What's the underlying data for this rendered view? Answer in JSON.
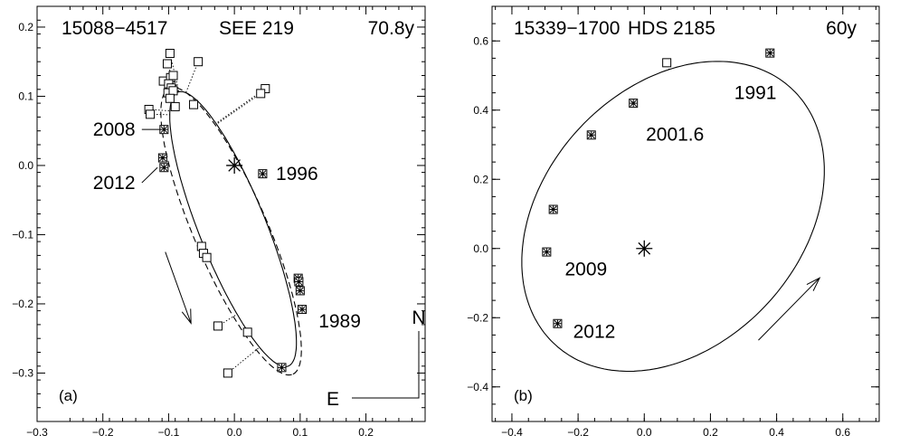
{
  "chart_data": [
    {
      "type": "scatter",
      "panel_label": "(a)",
      "header": [
        "15088−4517",
        "SEE 219",
        "70.8y"
      ],
      "xlim": [
        -0.3,
        0.29
      ],
      "ylim": [
        -0.37,
        0.23
      ],
      "xticks": [
        -0.3,
        -0.2,
        -0.1,
        0.0,
        0.1,
        0.2
      ],
      "yticks": [
        -0.3,
        -0.2,
        -0.1,
        0.0,
        0.1,
        0.2
      ],
      "xtick_labels": [
        "−0.3",
        "−0.2",
        "−0.1",
        "0.0",
        "0.1",
        "0.2"
      ],
      "ytick_labels": [
        "−0.3",
        "−0.2",
        "−0.1",
        "0.0",
        "0.1",
        "0.2"
      ],
      "primary": [
        0.0,
        0.0
      ],
      "orbit_solid": {
        "cx": -0.002,
        "cy": -0.092,
        "a": 0.215,
        "b": 0.0505,
        "angle_deg": -66.9
      },
      "orbit_dashed": {
        "cx": -0.005,
        "cy": -0.095,
        "a": 0.227,
        "b": 0.0555,
        "angle_deg": -65.5
      },
      "observations_speckle": [
        {
          "x": -0.107,
          "y": 0.052
        },
        {
          "x": -0.109,
          "y": 0.011
        },
        {
          "x": -0.107,
          "y": -0.003
        },
        {
          "x": 0.043,
          "y": -0.012
        },
        {
          "x": 0.097,
          "y": -0.163
        },
        {
          "x": 0.098,
          "y": -0.168
        },
        {
          "x": 0.1,
          "y": -0.181
        },
        {
          "x": 0.103,
          "y": -0.208
        },
        {
          "x": 0.072,
          "y": -0.292
        }
      ],
      "observations_visual": [
        {
          "x": -0.098,
          "y": 0.162
        },
        {
          "x": -0.102,
          "y": 0.147
        },
        {
          "x": -0.055,
          "y": 0.15
        },
        {
          "x": -0.108,
          "y": 0.122
        },
        {
          "x": -0.097,
          "y": 0.127
        },
        {
          "x": -0.093,
          "y": 0.13
        },
        {
          "x": -0.1,
          "y": 0.118
        },
        {
          "x": -0.096,
          "y": 0.112
        },
        {
          "x": -0.101,
          "y": 0.105
        },
        {
          "x": -0.093,
          "y": 0.108
        },
        {
          "x": -0.098,
          "y": 0.097
        },
        {
          "x": -0.09,
          "y": 0.085
        },
        {
          "x": -0.062,
          "y": 0.088
        },
        {
          "x": 0.047,
          "y": 0.111
        },
        {
          "x": 0.04,
          "y": 0.104
        },
        {
          "x": -0.13,
          "y": 0.081
        },
        {
          "x": -0.128,
          "y": 0.074
        },
        {
          "x": -0.05,
          "y": -0.117
        },
        {
          "x": -0.047,
          "y": -0.127
        },
        {
          "x": -0.042,
          "y": -0.133
        },
        {
          "x": -0.025,
          "y": -0.232
        },
        {
          "x": 0.02,
          "y": -0.241
        },
        {
          "x": -0.01,
          "y": -0.3
        }
      ],
      "annotations": [
        {
          "text": "2008",
          "x": -0.215,
          "y": 0.052,
          "lead_to": [
            -0.112,
            0.052
          ]
        },
        {
          "text": "2012",
          "x": -0.215,
          "y": -0.025,
          "lead_to": [
            -0.117,
            -0.003
          ]
        },
        {
          "text": "1996",
          "x": 0.063,
          "y": -0.012
        },
        {
          "text": "1989",
          "x": 0.128,
          "y": -0.225
        }
      ],
      "motion_arrow": {
        "from": [
          -0.105,
          -0.125
        ],
        "to": [
          -0.066,
          -0.228
        ]
      },
      "compass": {
        "north": "N",
        "east": "E"
      }
    },
    {
      "type": "scatter",
      "panel_label": "(b)",
      "header": [
        "15339−1700",
        "HDS 2185",
        "60y"
      ],
      "xlim": [
        -0.46,
        0.71
      ],
      "ylim": [
        -0.5,
        0.7
      ],
      "xticks": [
        -0.4,
        -0.2,
        0.0,
        0.2,
        0.4,
        0.6
      ],
      "yticks": [
        -0.4,
        -0.2,
        0.0,
        0.2,
        0.4,
        0.6
      ],
      "xtick_labels": [
        "−0.4",
        "−0.2",
        "0.0",
        "0.2",
        "0.4",
        "0.6"
      ],
      "ytick_labels": [
        "−0.4",
        "−0.2",
        "0.0",
        "0.2",
        "0.4",
        "0.6"
      ],
      "primary": [
        0.0,
        0.0
      ],
      "orbit_solid": {
        "cx": 0.087,
        "cy": 0.093,
        "a": 0.515,
        "b": 0.38,
        "angle_deg": 43.0
      },
      "observations_speckle": [
        {
          "x": 0.38,
          "y": 0.565
        },
        {
          "x": -0.033,
          "y": 0.42
        },
        {
          "x": -0.16,
          "y": 0.328
        },
        {
          "x": -0.275,
          "y": 0.113
        },
        {
          "x": -0.295,
          "y": -0.01
        },
        {
          "x": -0.262,
          "y": -0.217
        }
      ],
      "observations_visual": [
        {
          "x": 0.068,
          "y": 0.537
        }
      ],
      "annotations": [
        {
          "text": "1991",
          "x": 0.272,
          "y": 0.45
        },
        {
          "text": "2001.6",
          "x": 0.005,
          "y": 0.33
        },
        {
          "text": "2009",
          "x": -0.24,
          "y": -0.06
        },
        {
          "text": "2012",
          "x": -0.215,
          "y": -0.24
        }
      ],
      "motion_arrow": {
        "from": [
          0.345,
          -0.265
        ],
        "to": [
          0.53,
          -0.085
        ]
      }
    }
  ]
}
